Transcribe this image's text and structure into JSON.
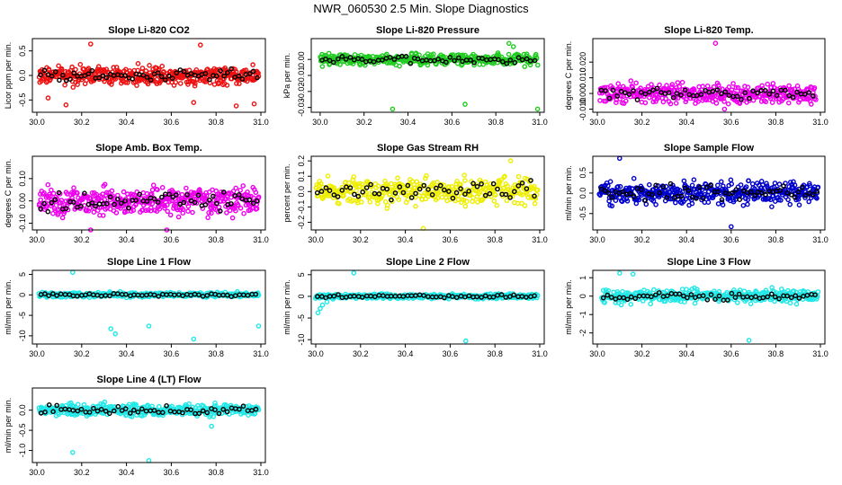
{
  "figure_title": "NWR_060530  2.5 Min. Slope Diagnostics",
  "colors": {
    "cyan": "#22e8e8",
    "black": "#000000"
  },
  "chart_data": [
    {
      "type": "scatter",
      "title": "Slope Li-820 CO2",
      "ylabel": "Licor ppm per min.",
      "color": "#ee1111",
      "xlim": [
        30.0,
        31.0
      ],
      "ylim": [
        -0.75,
        0.75
      ],
      "yticks": [
        -0.5,
        0.0,
        0.5
      ],
      "ytick_labels": [
        "-0.5",
        "0.0",
        "0.5"
      ],
      "xticks": [
        30.0,
        30.2,
        30.4,
        30.6,
        30.8,
        31.0
      ],
      "xtick_labels": [
        "30.0",
        "30.2",
        "30.4",
        "30.6",
        "30.8",
        "31.0"
      ],
      "n_points": 420,
      "spread": 0.15,
      "x_start": 30.01,
      "x_end": 30.99,
      "outliers": [
        [
          30.24,
          0.64
        ],
        [
          30.73,
          0.62
        ],
        [
          30.13,
          -0.6
        ],
        [
          30.05,
          -0.46
        ],
        [
          30.7,
          -0.55
        ],
        [
          30.89,
          -0.62
        ],
        [
          30.97,
          -0.58
        ]
      ]
    },
    {
      "type": "scatter",
      "title": "Slope Li-820 Pressure",
      "ylabel": "kPa per min.",
      "color": "#22cc22",
      "xlim": [
        29.98,
        31.0
      ],
      "ylim": [
        -0.033,
        0.013
      ],
      "yticks": [
        -0.03,
        -0.02,
        -0.01,
        0.0
      ],
      "ytick_labels": [
        "-0.03",
        "-0.02",
        "-0.01",
        "0.00"
      ],
      "xticks": [
        30.0,
        30.2,
        30.4,
        30.6,
        30.8,
        31.0
      ],
      "xtick_labels": [
        "30.0",
        "30.2",
        "30.4",
        "30.6",
        "30.8",
        "31.0"
      ],
      "n_points": 380,
      "spread": 0.0028,
      "x_start": 30.0,
      "x_end": 30.99,
      "outliers": [
        [
          30.33,
          -0.031
        ],
        [
          30.66,
          -0.028
        ],
        [
          30.99,
          -0.031
        ],
        [
          30.86,
          0.01
        ],
        [
          30.88,
          0.008
        ]
      ]
    },
    {
      "type": "scatter",
      "title": "Slope Li-820 Temp.",
      "ylabel": "degrees C per min.",
      "color": "#ee00ee",
      "xlim": [
        30.0,
        31.0
      ],
      "ylim": [
        -0.012,
        0.035
      ],
      "yticks": [
        -0.01,
        0.0,
        0.01,
        0.02
      ],
      "ytick_labels": [
        "-0.010",
        "0.000",
        "0.010",
        "0.020"
      ],
      "xticks": [
        30.0,
        30.2,
        30.4,
        30.6,
        30.8,
        31.0
      ],
      "xtick_labels": [
        "30.0",
        "30.2",
        "30.4",
        "30.6",
        "30.8",
        "31.0"
      ],
      "n_points": 380,
      "spread": 0.005,
      "x_start": 30.01,
      "x_end": 30.98,
      "outliers": [
        [
          30.53,
          0.032
        ],
        [
          30.57,
          -0.01
        ]
      ]
    },
    {
      "type": "scatter",
      "title": "Slope Amb. Box Temp.",
      "ylabel": "degrees C per min.",
      "color": "#ee00ee",
      "xlim": [
        30.0,
        31.0
      ],
      "ylim": [
        -0.13,
        0.2
      ],
      "yticks": [
        -0.1,
        0.0,
        0.1
      ],
      "ytick_labels": [
        "-0.10",
        "0.00",
        "0.10"
      ],
      "xticks": [
        30.0,
        30.2,
        30.4,
        30.6,
        30.8,
        31.0
      ],
      "xtick_labels": [
        "30.0",
        "30.2",
        "30.4",
        "30.6",
        "30.8",
        "31.0"
      ],
      "n_points": 420,
      "spread": 0.05,
      "x_start": 30.01,
      "x_end": 30.99,
      "outliers": [
        [
          30.24,
          -0.13
        ],
        [
          30.58,
          -0.13
        ]
      ]
    },
    {
      "type": "scatter",
      "title": "Slope Gas Stream RH",
      "ylabel": "percent per min.",
      "color": "#eeee00",
      "xlim": [
        30.0,
        31.0
      ],
      "ylim": [
        -0.25,
        0.23
      ],
      "yticks": [
        -0.2,
        -0.1,
        0.0,
        0.1,
        0.2
      ],
      "ytick_labels": [
        "-0.2",
        "-0.1",
        "0.0",
        "0.1",
        "0.2"
      ],
      "xticks": [
        30.0,
        30.2,
        30.4,
        30.6,
        30.8,
        31.0
      ],
      "xtick_labels": [
        "30.0",
        "30.2",
        "30.4",
        "30.6",
        "30.8",
        "31.0"
      ],
      "n_points": 380,
      "spread": 0.07,
      "x_start": 30.0,
      "x_end": 30.99,
      "outliers": [
        [
          30.48,
          -0.24
        ],
        [
          30.87,
          0.2
        ]
      ]
    },
    {
      "type": "scatter",
      "title": "Slope Sample Flow",
      "ylabel": "ml/min per min.",
      "color": "#0000cc",
      "xlim": [
        30.0,
        31.0
      ],
      "ylim": [
        -0.9,
        0.9
      ],
      "yticks": [
        -0.5,
        0.0,
        0.5
      ],
      "ytick_labels": [
        "-0.5",
        "0.0",
        "0.5"
      ],
      "xticks": [
        30.0,
        30.2,
        30.4,
        30.6,
        30.8,
        31.0
      ],
      "xtick_labels": [
        "30.0",
        "30.2",
        "30.4",
        "30.6",
        "30.8",
        "31.0"
      ],
      "n_points": 420,
      "spread": 0.22,
      "x_start": 30.01,
      "x_end": 30.99,
      "outliers": [
        [
          30.1,
          0.85
        ],
        [
          30.6,
          -0.82
        ]
      ]
    },
    {
      "type": "scatter",
      "title": "Slope Line 1 Flow",
      "ylabel": "ml/min per min.",
      "color": "#22e8e8",
      "xlim": [
        30.0,
        31.0
      ],
      "ylim": [
        -12,
        6
      ],
      "yticks": [
        -10,
        -5,
        0,
        5
      ],
      "ytick_labels": [
        "-10",
        "-5",
        "0",
        "5"
      ],
      "xticks": [
        30.0,
        30.2,
        30.4,
        30.6,
        30.8,
        31.0
      ],
      "xtick_labels": [
        "30.0",
        "30.2",
        "30.4",
        "30.6",
        "30.8",
        "31.0"
      ],
      "n_points": 380,
      "spread": 0.5,
      "x_start": 30.01,
      "x_end": 30.99,
      "outliers": [
        [
          30.16,
          5.5
        ],
        [
          30.33,
          -8.3
        ],
        [
          30.35,
          -9.5
        ],
        [
          30.5,
          -7.6
        ],
        [
          30.7,
          -10.8
        ],
        [
          30.99,
          -7.6
        ]
      ]
    },
    {
      "type": "scatter",
      "title": "Slope Line 2 Flow",
      "ylabel": "ml/min per min.",
      "color": "#22e8e8",
      "xlim": [
        30.0,
        31.0
      ],
      "ylim": [
        -11,
        6
      ],
      "yticks": [
        -10,
        -5,
        0,
        5
      ],
      "ytick_labels": [
        "-10",
        "-5",
        "0",
        "5"
      ],
      "xticks": [
        30.0,
        30.2,
        30.4,
        30.6,
        30.8,
        31.0
      ],
      "xtick_labels": [
        "30.0",
        "30.2",
        "30.4",
        "30.6",
        "30.8",
        "31.0"
      ],
      "n_points": 380,
      "spread": 0.45,
      "x_start": 30.0,
      "x_end": 30.99,
      "outliers": [
        [
          30.01,
          -3.8
        ],
        [
          30.02,
          -2.8
        ],
        [
          30.03,
          -2.0
        ],
        [
          30.05,
          -1.3
        ],
        [
          30.17,
          5.4
        ],
        [
          30.67,
          -10.3
        ]
      ]
    },
    {
      "type": "scatter",
      "title": "Slope Line 3 Flow",
      "ylabel": "ml/min per min.",
      "color": "#22e8e8",
      "xlim": [
        30.0,
        31.0
      ],
      "ylim": [
        -2.6,
        1.4
      ],
      "yticks": [
        -2,
        -1,
        0,
        1
      ],
      "ytick_labels": [
        "-2",
        "-1",
        "0",
        "1"
      ],
      "xticks": [
        30.0,
        30.2,
        30.4,
        30.6,
        30.8,
        31.0
      ],
      "xtick_labels": [
        "30.0",
        "30.2",
        "30.4",
        "30.6",
        "30.8",
        "31.0"
      ],
      "n_points": 380,
      "spread": 0.28,
      "x_start": 30.02,
      "x_end": 30.99,
      "outliers": [
        [
          30.1,
          1.25
        ],
        [
          30.16,
          1.2
        ],
        [
          30.68,
          -2.4
        ]
      ]
    },
    {
      "type": "scatter",
      "title": "Slope Line 4 (LT) Flow",
      "ylabel": "ml/min per min.",
      "color": "#22e8e8",
      "xlim": [
        30.0,
        31.0
      ],
      "ylim": [
        -1.3,
        0.55
      ],
      "yticks": [
        -1.0,
        -0.5,
        0.0
      ],
      "ytick_labels": [
        "-1.0",
        "-0.5",
        "0.0"
      ],
      "xticks": [
        30.0,
        30.2,
        30.4,
        30.6,
        30.8,
        31.0
      ],
      "xtick_labels": [
        "30.0",
        "30.2",
        "30.4",
        "30.6",
        "30.8",
        "31.0"
      ],
      "n_points": 380,
      "spread": 0.12,
      "x_start": 30.01,
      "x_end": 30.99,
      "outliers": [
        [
          30.16,
          -1.05
        ],
        [
          30.5,
          -1.25
        ],
        [
          30.78,
          -0.4
        ]
      ]
    }
  ]
}
